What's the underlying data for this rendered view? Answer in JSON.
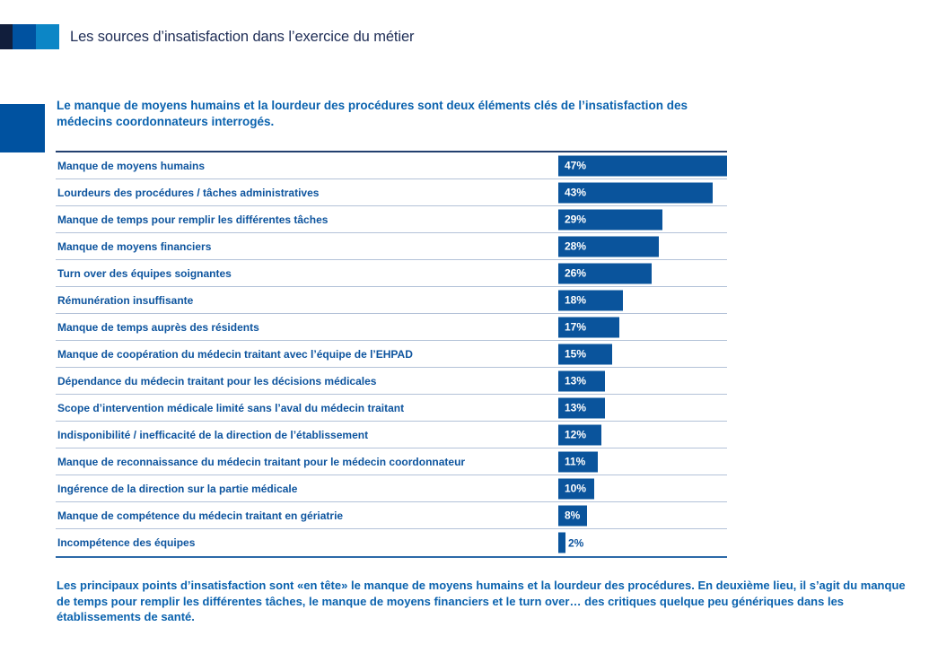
{
  "header": {
    "title": "Les sources d’insatisfaction dans l’exercice du métier",
    "brand_colors": [
      "#111e3c",
      "#0052a0",
      "#0c86c6"
    ]
  },
  "heading": "Le manque de moyens humains et la lourdeur des procédures sont deux éléments clés de l’insatisfaction des médecins coordonnateurs interrogés.",
  "footer_paragraph": "Les principaux points d’insatisfaction sont «en tête» le manque de moyens humains et la lourdeur des procédures. En deuxième lieu, il s’agit du manque de temps pour remplir les différentes tâches, le manque de moyens financiers et le turn over… des critiques quelque peu génériques dans les établissements de santé.",
  "chart_data": {
    "type": "bar",
    "orientation": "horizontal",
    "unit": "%",
    "title": "",
    "xlabel": "",
    "ylabel": "",
    "xlim": [
      0,
      47
    ],
    "grid": "row-separators",
    "legend": "none",
    "bar_color": "#0a549c",
    "categories": [
      "Manque de moyens humains",
      "Lourdeurs des procédures / tâches administratives",
      "Manque de temps pour remplir les différentes tâches",
      "Manque de moyens financiers",
      "Turn over des équipes soignantes",
      "Rémunération insuffisante",
      "Manque de temps auprès des résidents",
      "Manque de coopération du médecin traitant avec l’équipe de l’EHPAD",
      "Dépendance du médecin traitant pour les décisions médicales",
      "Scope d’intervention médicale limité sans l’aval du médecin traitant",
      "Indisponibilité / inefficacité de la direction de l’établissement",
      "Manque de reconnaissance du médecin traitant pour le médecin coordonnateur",
      "Ingérence de la direction sur la partie médicale",
      "Manque de compétence du médecin traitant en gériatrie",
      "Incompétence des équipes"
    ],
    "values": [
      47,
      43,
      29,
      28,
      26,
      18,
      17,
      15,
      13,
      13,
      12,
      11,
      10,
      8,
      2
    ],
    "value_labels": [
      "47%",
      "43%",
      "29%",
      "28%",
      "26%",
      "18%",
      "17%",
      "15%",
      "13%",
      "13%",
      "12%",
      "11%",
      "10%",
      "8%",
      "2%"
    ]
  },
  "colors": {
    "header_title": "#1d2c55",
    "heading_text": "#0a62ae",
    "row_label": "#0d549e",
    "bar_fill": "#0a549c",
    "separator": "#b3c2d8",
    "table_top_border": "#22406f",
    "table_bottom_border": "#2c69a8"
  }
}
